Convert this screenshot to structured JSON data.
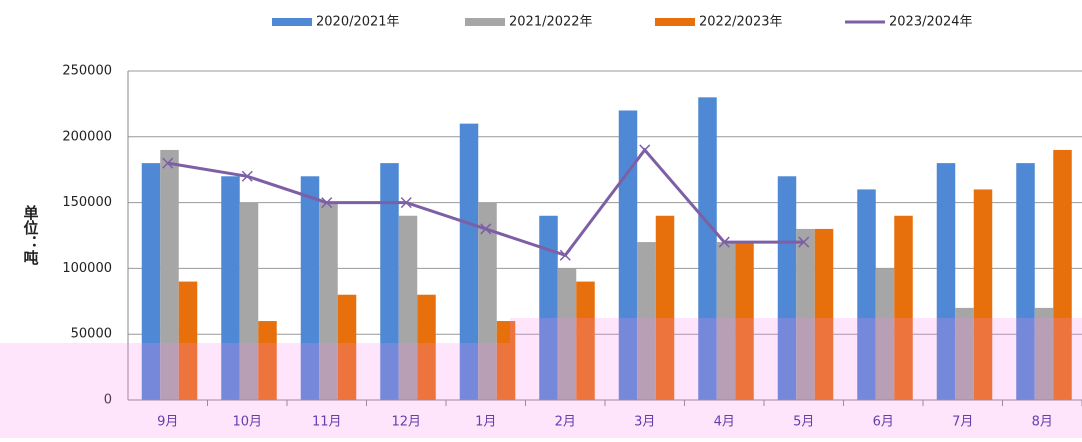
{
  "chart_data": {
    "type": "bar",
    "y_label": "单位：吨",
    "categories": [
      "9月",
      "10月",
      "11月",
      "12月",
      "1月",
      "2月",
      "3月",
      "4月",
      "5月",
      "6月",
      "7月",
      "8月"
    ],
    "series": [
      {
        "name": "2020/2021年",
        "type": "bar",
        "color": "#4f88d4",
        "values": [
          180000,
          170000,
          170000,
          180000,
          210000,
          140000,
          220000,
          230000,
          170000,
          160000,
          180000,
          180000
        ]
      },
      {
        "name": "2021/2022年",
        "type": "bar",
        "color": "#a6a6a6",
        "values": [
          190000,
          150000,
          150000,
          140000,
          150000,
          100000,
          120000,
          120000,
          130000,
          100000,
          70000,
          70000
        ]
      },
      {
        "name": "2022/2023年",
        "type": "bar",
        "color": "#e8700c",
        "values": [
          90000,
          60000,
          80000,
          80000,
          60000,
          90000,
          140000,
          120000,
          130000,
          140000,
          160000,
          190000
        ]
      },
      {
        "name": "2023/2024年",
        "type": "line",
        "color": "#7d5fa6",
        "values": [
          180000,
          170000,
          150000,
          150000,
          130000,
          110000,
          190000,
          120000,
          120000,
          null,
          null,
          null
        ]
      }
    ],
    "ylim": [
      0,
      250000
    ],
    "yticks": [
      0,
      50000,
      100000,
      150000,
      200000,
      250000
    ],
    "grid": true,
    "legend": "top"
  }
}
